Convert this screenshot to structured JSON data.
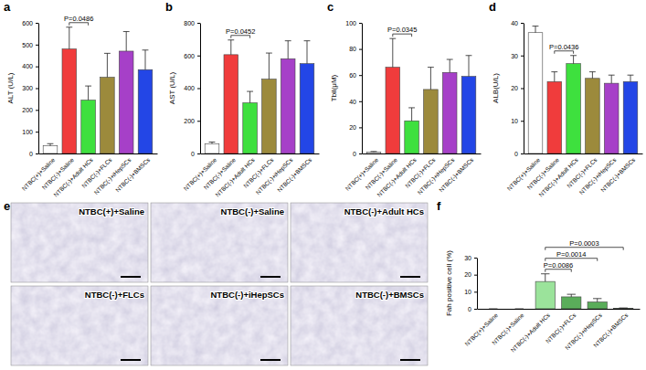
{
  "chart_data": [
    {
      "type": "bar",
      "title": "a",
      "y_label": "ALT (U/L)",
      "categories": [
        "NTBC(+)+Saline",
        "NTBC(-)+Saline",
        "NTBC(-)+Adult HCs",
        "NTBC(-)+FLCs",
        "NTBC(-)+iHepSCs",
        "NTBC(-)+BMSCs"
      ],
      "values": [
        35,
        480,
        245,
        350,
        470,
        385
      ],
      "errors": [
        10,
        100,
        65,
        110,
        90,
        90
      ],
      "colors": [
        "#ffffff",
        "#f03c3c",
        "#3ee03e",
        "#9c8a3c",
        "#a640c8",
        "#2346e6"
      ],
      "ylim": [
        0,
        600
      ],
      "yticks": [
        0,
        100,
        200,
        300,
        400,
        500,
        600
      ],
      "annotations": [
        {
          "text": "P=0.0486",
          "between": [
            "NTBC(-)+Saline",
            "NTBC(-)+Adult HCs"
          ]
        }
      ]
    },
    {
      "type": "bar",
      "title": "b",
      "y_label": "AST (U/L)",
      "categories": [
        "NTBC(+)+Saline",
        "NTBC(-)+Saline",
        "NTBC(-)+Adult HCs",
        "NTBC(-)+FLCs",
        "NTBC(-)+iHepSCs",
        "NTBC(-)+BMSCs"
      ],
      "values": [
        60,
        605,
        310,
        455,
        580,
        550
      ],
      "errors": [
        10,
        90,
        70,
        160,
        110,
        140
      ],
      "colors": [
        "#ffffff",
        "#f03c3c",
        "#3ee03e",
        "#9c8a3c",
        "#a640c8",
        "#2346e6"
      ],
      "ylim": [
        0,
        800
      ],
      "yticks": [
        0,
        200,
        400,
        600,
        800
      ],
      "annotations": [
        {
          "text": "P=0.0452",
          "between": [
            "NTBC(-)+Saline",
            "NTBC(-)+Adult HCs"
          ]
        }
      ]
    },
    {
      "type": "bar",
      "title": "c",
      "y_label": "Tbil(μM)",
      "categories": [
        "NTBC(+)+Saline",
        "NTBC(-)+Saline",
        "NTBC(-)+Adult HCs",
        "NTBC(-)+FLCs",
        "NTBC(-)+iHepSCs",
        "NTBC(-)+BMSCs"
      ],
      "values": [
        1,
        66,
        25,
        49,
        62,
        59
      ],
      "errors": [
        0.5,
        22,
        10,
        17,
        10,
        16
      ],
      "colors": [
        "#ffffff",
        "#f03c3c",
        "#3ee03e",
        "#9c8a3c",
        "#a640c8",
        "#2346e6"
      ],
      "ylim": [
        0,
        100
      ],
      "yticks": [
        0,
        20,
        40,
        60,
        80,
        100
      ],
      "annotations": [
        {
          "text": "P=0.0345",
          "between": [
            "NTBC(-)+Saline",
            "NTBC(-)+Adult HCs"
          ]
        }
      ]
    },
    {
      "type": "bar",
      "title": "d",
      "y_label": "ALB(U/L)",
      "categories": [
        "NTBC(+)+Saline",
        "NTBC(-)+Saline",
        "NTBC(-)+Adult HCs",
        "NTBC(-)+FLCs",
        "NTBC(-)+iHepSCs",
        "NTBC(-)+BMSCs"
      ],
      "values": [
        37,
        22,
        27.5,
        23,
        21.5,
        22
      ],
      "errors": [
        2,
        3,
        2.5,
        2,
        2.5,
        2
      ],
      "colors": [
        "#ffffff",
        "#f03c3c",
        "#3ee03e",
        "#9c8a3c",
        "#a640c8",
        "#2346e6"
      ],
      "ylim": [
        0,
        40
      ],
      "yticks": [
        0,
        10,
        20,
        30,
        40
      ],
      "annotations": [
        {
          "text": "P=0.0436",
          "between": [
            "NTBC(-)+Saline",
            "NTBC(-)+Adult HCs"
          ]
        }
      ]
    },
    {
      "type": "bar",
      "title": "f",
      "y_label": "Fah positive cell (%)",
      "categories": [
        "NTBC(+)+Saline",
        "NTBC(-)+Saline",
        "NTBC(-)+Adult HCs",
        "NTBC(-)+FLCs",
        "NTBC(-)+iHepSCs",
        "NTBC(-)+BMSCs"
      ],
      "values": [
        0,
        0,
        16,
        7,
        4,
        0.3
      ],
      "errors": [
        0,
        0,
        4.5,
        1.5,
        2,
        0.2
      ],
      "colors": [
        "#ffffff",
        "#f03c3c",
        "#9be39b",
        "#5aad5a",
        "#5aad5a",
        "#5aad5a"
      ],
      "ylim": [
        0,
        30
      ],
      "yticks": [
        0,
        10,
        20,
        30
      ],
      "annotations": [
        {
          "text": "P=0.0086",
          "between": [
            "NTBC(-)+Adult HCs",
            "NTBC(-)+FLCs"
          ]
        },
        {
          "text": "P=0.0014",
          "between": [
            "NTBC(-)+Adult HCs",
            "NTBC(-)+iHepSCs"
          ]
        },
        {
          "text": "P=0.0003",
          "between": [
            "NTBC(-)+Adult HCs",
            "NTBC(-)+BMSCs"
          ]
        }
      ]
    }
  ],
  "images": {
    "title": "e",
    "labels": [
      "NTBC(+)+Saline",
      "NTBC(-)+Saline",
      "NTBC(-)+Adult HCs",
      "NTBC(-)+FLCs",
      "NTBC(-)+iHepSCs",
      "NTBC(-)+BMSCs"
    ]
  }
}
